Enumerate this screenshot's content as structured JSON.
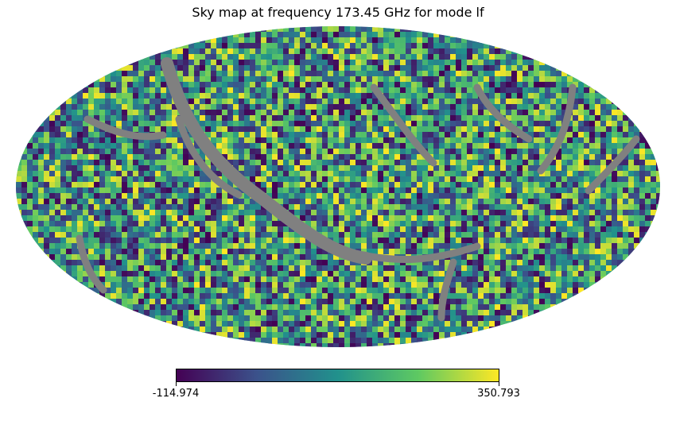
{
  "title": "Sky map at frequency 173.45 GHz for mode lf",
  "map": {
    "projection": "mollweide",
    "colormap": "viridis",
    "colormap_stops": [
      "#440154",
      "#3b528b",
      "#21918c",
      "#5ec962",
      "#fde725"
    ],
    "masked_color": "#808080",
    "background_color": "#ffffff"
  },
  "colorbar": {
    "min_label": "-114.974",
    "max_label": "350.793",
    "min": -114.974,
    "max": 350.793
  }
}
